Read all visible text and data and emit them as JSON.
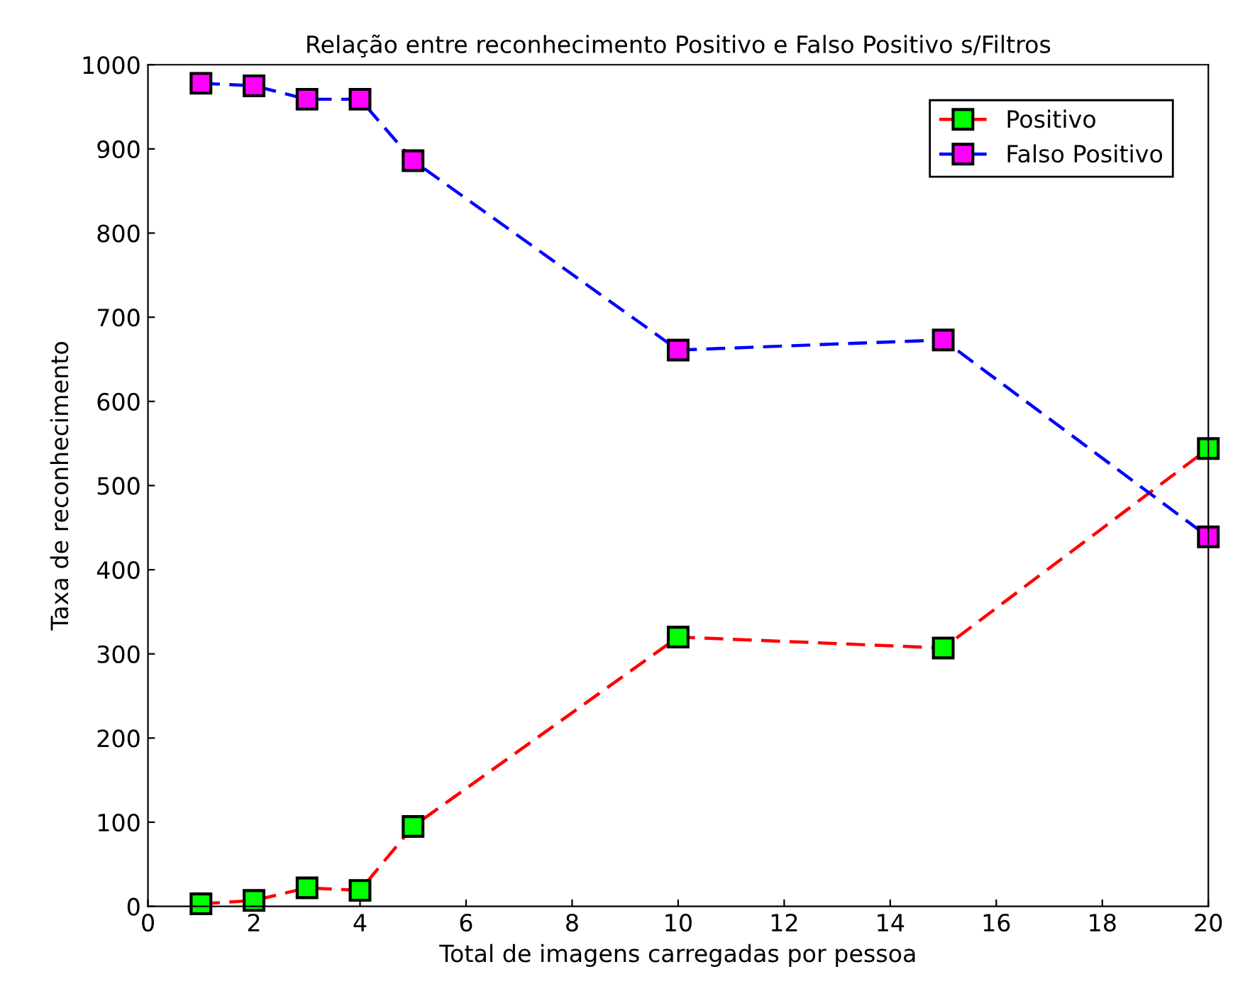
{
  "chart_data": {
    "type": "line",
    "title": "Relação entre reconhecimento Positivo e Falso Positivo s/Filtros",
    "xlabel": "Total de imagens carregadas por pessoa",
    "ylabel": "Taxa de reconhecimento",
    "x": [
      1,
      2,
      3,
      4,
      5,
      10,
      15,
      20
    ],
    "series": [
      {
        "name": "Positivo",
        "color": "#ff0000",
        "colors": [
          "#00ff00",
          "#00ff00",
          "#00ff00",
          "#00ff00",
          "#00ff00",
          "#00ff00",
          "#00ff00",
          "#00ff00"
        ],
        "values": [
          3,
          7,
          22,
          19,
          95,
          320,
          307,
          544
        ]
      },
      {
        "name": "Falso Positivo",
        "color": "#0000ff",
        "colors": [
          "#ff00ff",
          "#ff00ff",
          "#ff00ff",
          "#ff00ff",
          "#ff00ff",
          "#ff00ff",
          "#ff00ff",
          "#ff00ff"
        ],
        "values": [
          978,
          975,
          959,
          959,
          886,
          661,
          673,
          439
        ]
      }
    ],
    "xlim": [
      0,
      20
    ],
    "xticks": [
      0,
      2,
      4,
      6,
      8,
      10,
      12,
      14,
      16,
      18,
      20
    ],
    "ylim": [
      0,
      1000
    ],
    "yticks": [
      0,
      100,
      200,
      300,
      400,
      500,
      600,
      700,
      800,
      900,
      1000
    ],
    "grid": false,
    "legend": "top right",
    "marker": "square",
    "line_style": "dashed"
  }
}
